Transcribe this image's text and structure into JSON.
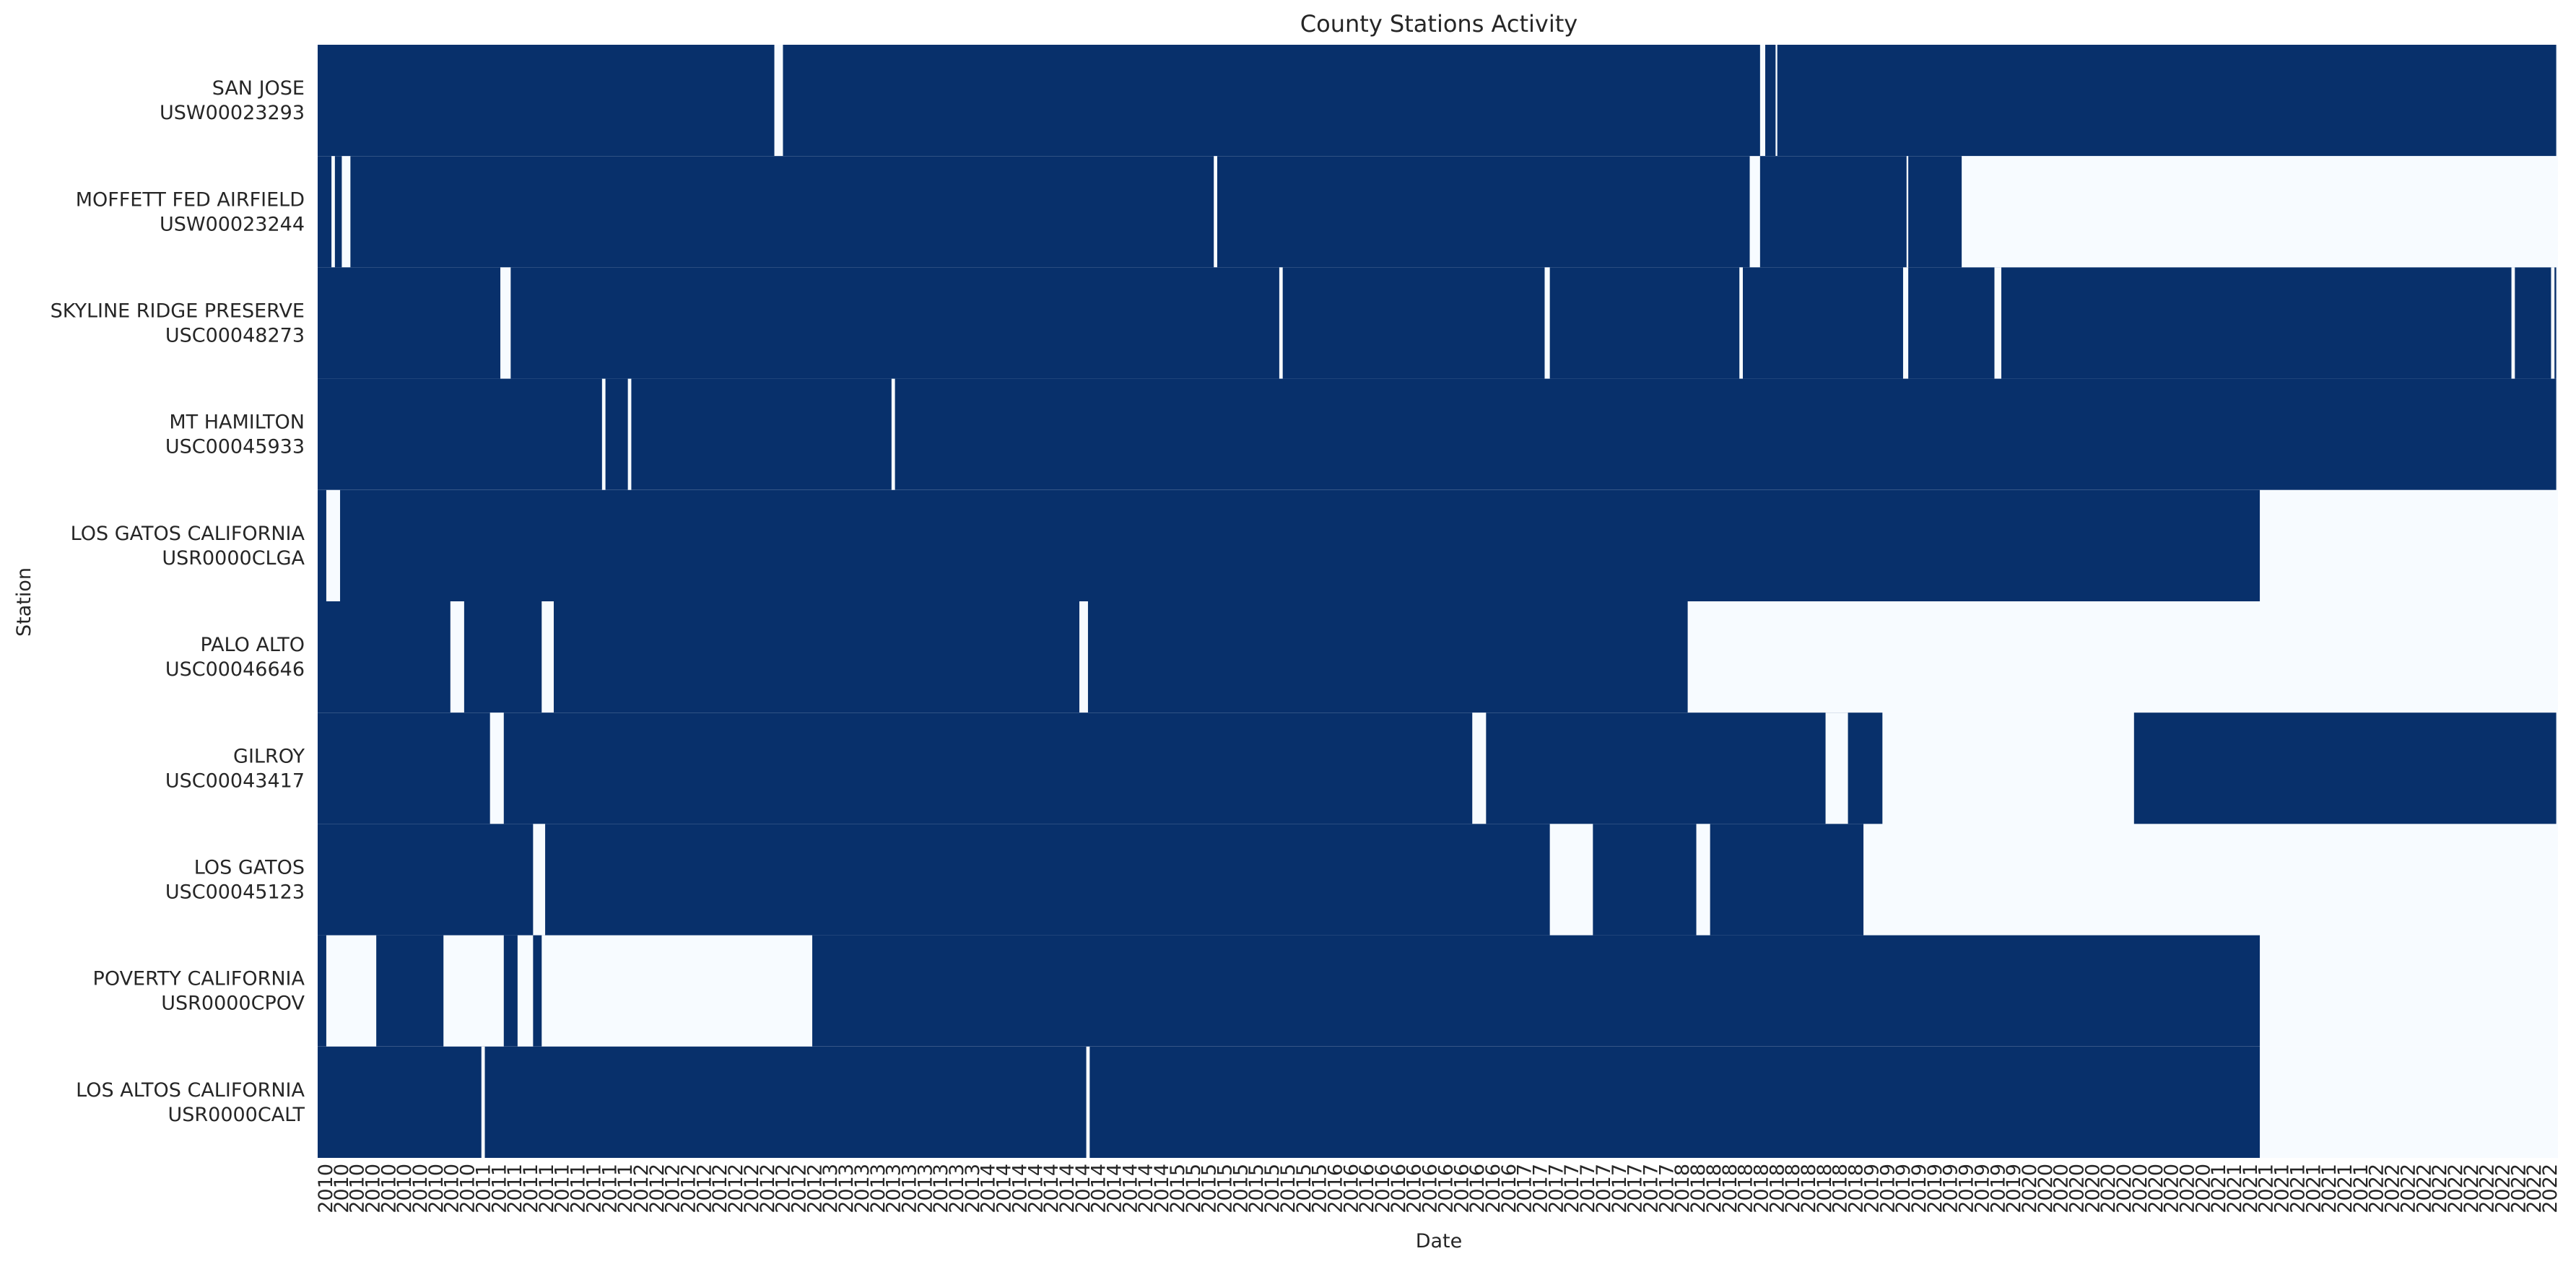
{
  "chart_data": {
    "type": "heatmap",
    "title": "County Stations Activity",
    "xlabel": "Date",
    "ylabel": "Station",
    "colors": {
      "active": "#08306b",
      "inactive": "#f7fbff"
    },
    "x_range": [
      "2010",
      "2022"
    ],
    "x_tick_labels": [
      "2010",
      "2010",
      "2010",
      "2010",
      "2010",
      "2010",
      "2010",
      "2010",
      "2010",
      "2010",
      "2011",
      "2011",
      "2011",
      "2011",
      "2011",
      "2011",
      "2011",
      "2011",
      "2011",
      "2011",
      "2012",
      "2012",
      "2012",
      "2012",
      "2012",
      "2012",
      "2012",
      "2012",
      "2012",
      "2012",
      "2012",
      "2012",
      "2013",
      "2013",
      "2013",
      "2013",
      "2013",
      "2013",
      "2013",
      "2013",
      "2013",
      "2013",
      "2014",
      "2014",
      "2014",
      "2014",
      "2014",
      "2014",
      "2014",
      "2014",
      "2014",
      "2014",
      "2014",
      "2014",
      "2015",
      "2015",
      "2015",
      "2015",
      "2015",
      "2015",
      "2015",
      "2015",
      "2015",
      "2015",
      "2016",
      "2016",
      "2016",
      "2016",
      "2016",
      "2016",
      "2016",
      "2016",
      "2016",
      "2016",
      "2016",
      "2016",
      "2017",
      "2017",
      "2017",
      "2017",
      "2017",
      "2017",
      "2017",
      "2017",
      "2017",
      "2017",
      "2018",
      "2018",
      "2018",
      "2018",
      "2018",
      "2018",
      "2018",
      "2018",
      "2018",
      "2018",
      "2018",
      "2018",
      "2019",
      "2019",
      "2019",
      "2019",
      "2019",
      "2019",
      "2019",
      "2019",
      "2019",
      "2019",
      "2020",
      "2020",
      "2020",
      "2020",
      "2020",
      "2020",
      "2020",
      "2020",
      "2020",
      "2020",
      "2020",
      "2020",
      "2021",
      "2021",
      "2021",
      "2021",
      "2021",
      "2021",
      "2021",
      "2021",
      "2021",
      "2021",
      "2022",
      "2022",
      "2022",
      "2022",
      "2022",
      "2022",
      "2022",
      "2022",
      "2022",
      "2022",
      "2022",
      "2022"
    ],
    "stations": [
      {
        "name": "SAN JOSE",
        "id": "USW00023293",
        "active_periods": [
          [
            "2010.00",
            "2022.99"
          ]
        ],
        "gaps": [
          [
            "2012.65",
            "2012.70"
          ],
          [
            "2018.37",
            "2018.40"
          ],
          [
            "2018.46",
            "2018.47"
          ]
        ]
      },
      {
        "name": "MOFFETT FED AIRFIELD",
        "id": "USW00023244",
        "active_periods": [
          [
            "2010.00",
            "2019.54"
          ]
        ],
        "gaps": [
          [
            "2010.08",
            "2010.10"
          ],
          [
            "2010.14",
            "2010.19"
          ],
          [
            "2015.20",
            "2015.22"
          ],
          [
            "2018.31",
            "2018.37"
          ],
          [
            "2019.22",
            "2019.23"
          ]
        ]
      },
      {
        "name": "SKYLINE RIDGE PRESERVE",
        "id": "USC00048273",
        "active_periods": [
          [
            "2010.00",
            "2022.99"
          ]
        ],
        "gaps": [
          [
            "2011.06",
            "2011.12"
          ],
          [
            "2015.58",
            "2015.60"
          ],
          [
            "2017.12",
            "2017.15"
          ],
          [
            "2018.25",
            "2018.27"
          ],
          [
            "2019.20",
            "2019.23"
          ],
          [
            "2019.73",
            "2019.77"
          ],
          [
            "2022.73",
            "2022.75"
          ],
          [
            "2022.96",
            "2022.98"
          ]
        ]
      },
      {
        "name": "MT HAMILTON",
        "id": "USC00045933",
        "active_periods": [
          [
            "2010.00",
            "2022.99"
          ]
        ],
        "gaps": [
          [
            "2011.65",
            "2011.67"
          ],
          [
            "2011.80",
            "2011.82"
          ],
          [
            "2013.33",
            "2013.35"
          ]
        ]
      },
      {
        "name": "LOS GATOS CALIFORNIA",
        "id": "USR0000CLGA",
        "active_periods": [
          [
            "2010.00",
            "2021.27"
          ]
        ],
        "gaps": [
          [
            "2010.05",
            "2010.13"
          ]
        ]
      },
      {
        "name": "PALO ALTO",
        "id": "USC00046646",
        "active_periods": [
          [
            "2010.00",
            "2017.95"
          ]
        ],
        "gaps": [
          [
            "2010.77",
            "2010.85"
          ],
          [
            "2011.30",
            "2011.37"
          ],
          [
            "2014.42",
            "2014.47"
          ]
        ]
      },
      {
        "name": "GILROY",
        "id": "USC00043417",
        "active_periods": [
          [
            "2010.00",
            "2019.08"
          ],
          [
            "2020.54",
            "2022.99"
          ]
        ],
        "gaps": [
          [
            "2011.00",
            "2011.08"
          ],
          [
            "2016.70",
            "2016.78"
          ],
          [
            "2018.75",
            "2018.88"
          ]
        ]
      },
      {
        "name": "LOS GATOS",
        "id": "USC00045123",
        "active_periods": [
          [
            "2010.00",
            "2018.97"
          ]
        ],
        "gaps": [
          [
            "2011.25",
            "2011.32"
          ],
          [
            "2017.15",
            "2017.40"
          ],
          [
            "2018.00",
            "2018.08"
          ]
        ]
      },
      {
        "name": "POVERTY CALIFORNIA",
        "id": "USR0000CPOV",
        "active_periods": [
          [
            "2010.00",
            "2021.27"
          ]
        ],
        "gaps": [
          [
            "2010.05",
            "2010.34"
          ],
          [
            "2010.73",
            "2011.08"
          ],
          [
            "2011.16",
            "2011.25"
          ],
          [
            "2011.30",
            "2012.87"
          ]
        ]
      },
      {
        "name": "LOS ALTOS CALIFORNIA",
        "id": "USR0000CALT",
        "active_periods": [
          [
            "2010.00",
            "2021.27"
          ]
        ],
        "gaps": [
          [
            "2010.95",
            "2010.97"
          ],
          [
            "2014.46",
            "2014.48"
          ]
        ]
      }
    ]
  }
}
